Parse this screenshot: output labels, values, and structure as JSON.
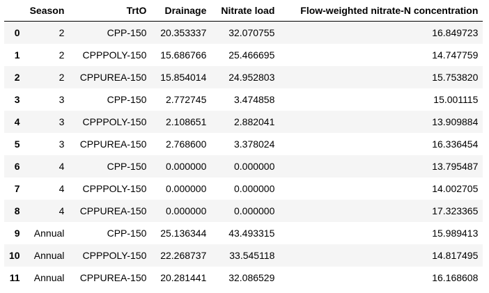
{
  "table": {
    "columns": [
      "",
      "Season",
      "TrtO",
      "Drainage",
      "Nitrate load",
      "Flow-weighted nitrate-N concentration"
    ],
    "rows": [
      {
        "index": "0",
        "season": "2",
        "trt": "CPP-150",
        "drainage": "20.353337",
        "nitrate_load": "32.070755",
        "flow_weighted": "16.849723"
      },
      {
        "index": "1",
        "season": "2",
        "trt": "CPPPOLY-150",
        "drainage": "15.686766",
        "nitrate_load": "25.466695",
        "flow_weighted": "14.747759"
      },
      {
        "index": "2",
        "season": "2",
        "trt": "CPPUREA-150",
        "drainage": "15.854014",
        "nitrate_load": "24.952803",
        "flow_weighted": "15.753820"
      },
      {
        "index": "3",
        "season": "3",
        "trt": "CPP-150",
        "drainage": "2.772745",
        "nitrate_load": "3.474858",
        "flow_weighted": "15.001115"
      },
      {
        "index": "4",
        "season": "3",
        "trt": "CPPPOLY-150",
        "drainage": "2.108651",
        "nitrate_load": "2.882041",
        "flow_weighted": "13.909884"
      },
      {
        "index": "5",
        "season": "3",
        "trt": "CPPUREA-150",
        "drainage": "2.768600",
        "nitrate_load": "3.378024",
        "flow_weighted": "16.336454"
      },
      {
        "index": "6",
        "season": "4",
        "trt": "CPP-150",
        "drainage": "0.000000",
        "nitrate_load": "0.000000",
        "flow_weighted": "13.795487"
      },
      {
        "index": "7",
        "season": "4",
        "trt": "CPPPOLY-150",
        "drainage": "0.000000",
        "nitrate_load": "0.000000",
        "flow_weighted": "14.002705"
      },
      {
        "index": "8",
        "season": "4",
        "trt": "CPPUREA-150",
        "drainage": "0.000000",
        "nitrate_load": "0.000000",
        "flow_weighted": "17.323365"
      },
      {
        "index": "9",
        "season": "Annual",
        "trt": "CPP-150",
        "drainage": "25.136344",
        "nitrate_load": "43.493315",
        "flow_weighted": "15.989413"
      },
      {
        "index": "10",
        "season": "Annual",
        "trt": "CPPPOLY-150",
        "drainage": "22.268737",
        "nitrate_load": "33.545118",
        "flow_weighted": "14.817495"
      },
      {
        "index": "11",
        "season": "Annual",
        "trt": "CPPUREA-150",
        "drainage": "20.281441",
        "nitrate_load": "32.086529",
        "flow_weighted": "16.168608"
      }
    ]
  },
  "colors": {
    "striped_row": "#f5f5f5",
    "plain_row": "#ffffff",
    "header_rule": "#000000"
  }
}
